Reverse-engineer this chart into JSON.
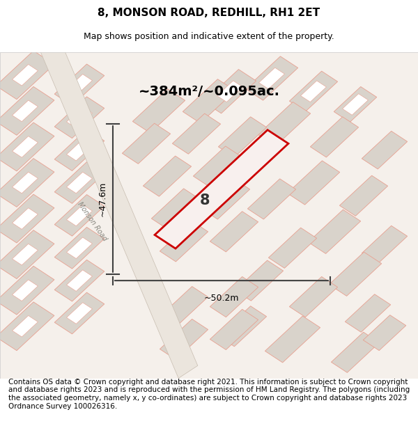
{
  "title": "8, MONSON ROAD, REDHILL, RH1 2ET",
  "subtitle": "Map shows position and indicative extent of the property.",
  "area_label": "~384m²/~0.095ac.",
  "dim_height": "~47.6m",
  "dim_width": "~50.2m",
  "number_label": "8",
  "road_label": "Monson Road",
  "footer": "Contains OS data © Crown copyright and database right 2021. This information is subject to Crown copyright and database rights 2023 and is reproduced with the permission of HM Land Registry. The polygons (including the associated geometry, namely x, y co-ordinates) are subject to Crown copyright and database rights 2023 Ordnance Survey 100026316.",
  "bg_color": "#f5f0eb",
  "map_bg": "#f5f0eb",
  "road_color": "#f0ece6",
  "building_fill": "#d9d3cb",
  "building_stroke": "#e8a090",
  "highlight_fill": "#f5f0eb",
  "highlight_stroke": "#cc0000",
  "dim_line_color": "#404040",
  "title_fontsize": 11,
  "subtitle_fontsize": 9,
  "footer_fontsize": 7.5
}
